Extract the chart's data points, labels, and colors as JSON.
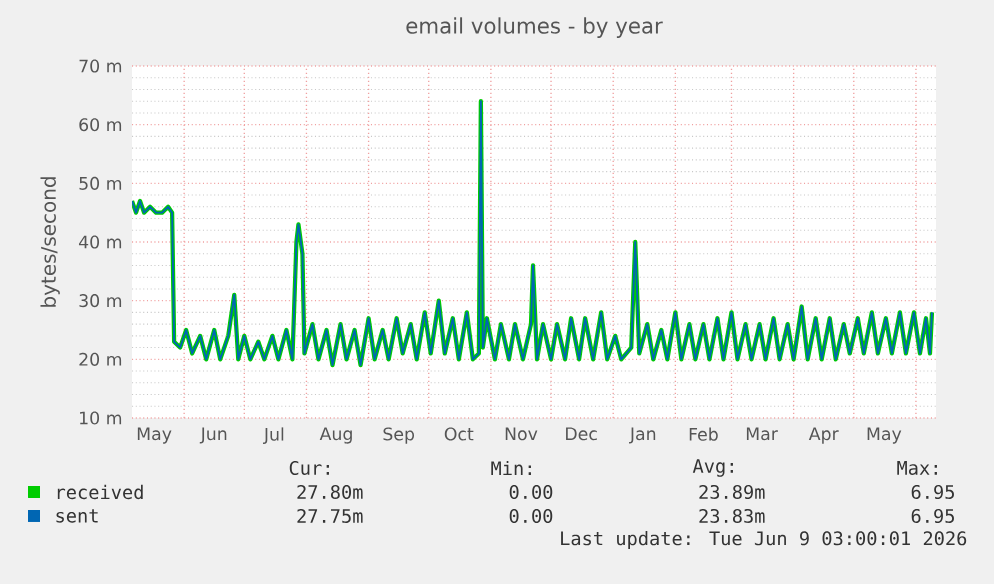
{
  "chart_data": {
    "type": "line",
    "title": "email volumes - by year",
    "ylabel": "bytes/second",
    "x": [
      "2025-05-06",
      "2025-05-08",
      "2025-05-10",
      "2025-05-12",
      "2025-05-15",
      "2025-05-18",
      "2025-05-21",
      "2025-05-24",
      "2025-05-26",
      "2025-05-27",
      "2025-05-30",
      "2025-06-02",
      "2025-06-05",
      "2025-06-09",
      "2025-06-12",
      "2025-06-16",
      "2025-06-19",
      "2025-06-23",
      "2025-06-26",
      "2025-06-28",
      "2025-07-01",
      "2025-07-04",
      "2025-07-08",
      "2025-07-11",
      "2025-07-15",
      "2025-07-18",
      "2025-07-22",
      "2025-07-25",
      "2025-07-27",
      "2025-07-28",
      "2025-07-30",
      "2025-07-31",
      "2025-08-04",
      "2025-08-07",
      "2025-08-11",
      "2025-08-14",
      "2025-08-18",
      "2025-08-21",
      "2025-08-25",
      "2025-08-28",
      "2025-09-01",
      "2025-09-04",
      "2025-09-08",
      "2025-09-11",
      "2025-09-15",
      "2025-09-18",
      "2025-09-22",
      "2025-09-25",
      "2025-09-29",
      "2025-10-02",
      "2025-10-06",
      "2025-10-09",
      "2025-10-13",
      "2025-10-16",
      "2025-10-20",
      "2025-10-23",
      "2025-10-26",
      "2025-10-27",
      "2025-10-28",
      "2025-10-30",
      "2025-11-03",
      "2025-11-06",
      "2025-11-10",
      "2025-11-13",
      "2025-11-17",
      "2025-11-21",
      "2025-11-22",
      "2025-11-24",
      "2025-11-27",
      "2025-12-01",
      "2025-12-04",
      "2025-12-08",
      "2025-12-11",
      "2025-12-15",
      "2025-12-18",
      "2025-12-22",
      "2025-12-26",
      "2025-12-29",
      "2026-01-02",
      "2026-01-05",
      "2026-01-10",
      "2026-01-12",
      "2026-01-14",
      "2026-01-18",
      "2026-01-21",
      "2026-01-25",
      "2026-01-28",
      "2026-02-01",
      "2026-02-04",
      "2026-02-08",
      "2026-02-11",
      "2026-02-15",
      "2026-02-18",
      "2026-02-22",
      "2026-02-25",
      "2026-03-01",
      "2026-03-04",
      "2026-03-08",
      "2026-03-11",
      "2026-03-15",
      "2026-03-18",
      "2026-03-22",
      "2026-03-25",
      "2026-03-29",
      "2026-04-01",
      "2026-04-05",
      "2026-04-08",
      "2026-04-12",
      "2026-04-15",
      "2026-04-19",
      "2026-04-22",
      "2026-04-26",
      "2026-04-29",
      "2026-05-03",
      "2026-05-06",
      "2026-05-10",
      "2026-05-13",
      "2026-05-17",
      "2026-05-20",
      "2026-05-24",
      "2026-05-27",
      "2026-05-31",
      "2026-06-03",
      "2026-06-06",
      "2026-06-08",
      "2026-06-09"
    ],
    "series": [
      {
        "name": "received",
        "color": "#00cc00",
        "values": [
          47,
          45,
          47,
          45,
          46,
          45,
          45,
          46,
          45,
          23,
          22,
          25,
          21,
          24,
          20,
          25,
          20,
          24,
          31,
          20,
          24,
          20,
          23,
          20,
          24,
          20,
          25,
          20,
          40,
          43,
          38,
          21,
          26,
          20,
          25,
          19,
          26,
          20,
          25,
          19,
          27,
          20,
          25,
          20,
          27,
          21,
          26,
          20,
          28,
          21,
          30,
          21,
          27,
          20,
          28,
          20,
          21,
          64,
          22,
          27,
          20,
          26,
          20,
          26,
          20,
          26,
          36,
          20,
          26,
          20,
          26,
          20,
          27,
          20,
          27,
          20,
          28,
          20,
          24,
          20,
          22,
          40,
          21,
          26,
          20,
          25,
          20,
          28,
          20,
          26,
          20,
          26,
          20,
          27,
          20,
          28,
          20,
          26,
          20,
          26,
          20,
          27,
          20,
          26,
          20,
          29,
          20,
          27,
          20,
          27,
          20,
          26,
          21,
          27,
          21,
          28,
          21,
          27,
          21,
          28,
          21,
          28,
          21,
          27,
          21,
          28
        ]
      },
      {
        "name": "sent",
        "color": "#0066b3",
        "values": [
          47,
          45,
          47,
          45,
          46,
          45,
          45,
          46,
          45,
          23,
          22,
          25,
          21,
          24,
          20,
          25,
          20,
          24,
          31,
          20,
          24,
          20,
          23,
          20,
          24,
          20,
          25,
          20,
          40,
          43,
          38,
          21,
          26,
          20,
          25,
          19,
          26,
          20,
          25,
          19,
          27,
          20,
          25,
          20,
          27,
          21,
          26,
          20,
          28,
          21,
          30,
          21,
          27,
          20,
          28,
          20,
          21,
          64,
          22,
          27,
          20,
          26,
          20,
          26,
          20,
          26,
          36,
          20,
          26,
          20,
          26,
          20,
          27,
          20,
          27,
          20,
          28,
          20,
          24,
          20,
          22,
          40,
          21,
          26,
          20,
          25,
          20,
          28,
          20,
          26,
          20,
          26,
          20,
          27,
          20,
          28,
          20,
          26,
          20,
          26,
          20,
          27,
          20,
          26,
          20,
          29,
          20,
          27,
          20,
          27,
          20,
          26,
          21,
          27,
          21,
          28,
          21,
          27,
          21,
          28,
          21,
          28,
          21,
          27,
          21,
          28
        ]
      }
    ],
    "xlim": [
      "2025-05-06",
      "2026-06-11"
    ],
    "xticks": [
      {
        "value": "2025-05-17",
        "label": "May"
      },
      {
        "value": "2025-06-01",
        "label": null
      },
      {
        "value": "2025-06-16",
        "label": "Jun"
      },
      {
        "value": "2025-07-01",
        "label": null
      },
      {
        "value": "2025-07-16",
        "label": "Jul"
      },
      {
        "value": "2025-08-01",
        "label": null
      },
      {
        "value": "2025-08-16",
        "label": "Aug"
      },
      {
        "value": "2025-09-01",
        "label": null
      },
      {
        "value": "2025-09-16",
        "label": "Sep"
      },
      {
        "value": "2025-10-01",
        "label": null
      },
      {
        "value": "2025-10-16",
        "label": "Oct"
      },
      {
        "value": "2025-11-01",
        "label": null
      },
      {
        "value": "2025-11-16",
        "label": "Nov"
      },
      {
        "value": "2025-12-01",
        "label": null
      },
      {
        "value": "2025-12-16",
        "label": "Dec"
      },
      {
        "value": "2026-01-01",
        "label": null
      },
      {
        "value": "2026-01-16",
        "label": "Jan"
      },
      {
        "value": "2026-02-01",
        "label": null
      },
      {
        "value": "2026-02-15",
        "label": "Feb"
      },
      {
        "value": "2026-03-01",
        "label": null
      },
      {
        "value": "2026-03-16",
        "label": "Mar"
      },
      {
        "value": "2026-04-01",
        "label": null
      },
      {
        "value": "2026-04-16",
        "label": "Apr"
      },
      {
        "value": "2026-05-01",
        "label": null
      },
      {
        "value": "2026-05-16",
        "label": "May"
      },
      {
        "value": "2026-06-01",
        "label": null
      }
    ],
    "ylim": [
      10,
      70
    ],
    "yticks": [
      {
        "value": 10,
        "label": "10 m"
      },
      {
        "value": 20,
        "label": "20 m"
      },
      {
        "value": 30,
        "label": "30 m"
      },
      {
        "value": 40,
        "label": "40 m"
      },
      {
        "value": 50,
        "label": "50 m"
      },
      {
        "value": 60,
        "label": "60 m"
      },
      {
        "value": 70,
        "label": "70 m"
      }
    ],
    "grid": true,
    "legend": "bottom left",
    "marker": "none",
    "line_style": "solid",
    "annotations": [
      "Cur:",
      "Min:",
      "Avg:",
      "Max:",
      "27.80m",
      "0.00",
      "23.89m",
      "6.95",
      "27.75m",
      "0.00",
      "23.83m",
      "6.95",
      "Last update: Tue Jun  9 03:00:01 2026"
    ]
  }
}
